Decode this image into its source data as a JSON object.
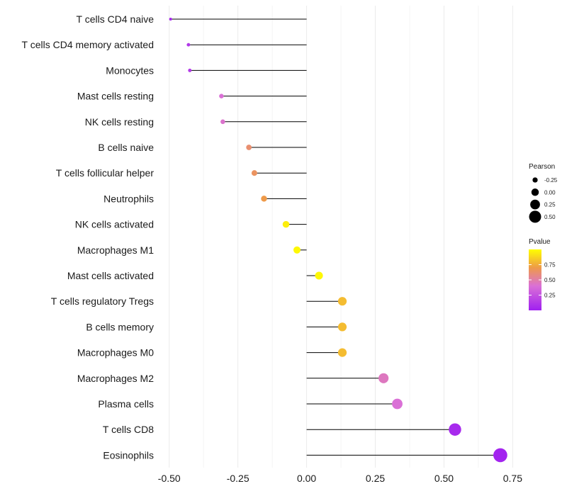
{
  "chart_data": {
    "type": "lollipop",
    "title": "",
    "xlabel": "",
    "ylabel": "",
    "xlim": [
      -0.52,
      0.78
    ],
    "xticks": [
      -0.5,
      -0.25,
      0.0,
      0.25,
      0.5,
      0.75
    ],
    "xtick_labels": [
      "-0.50",
      "-0.25",
      "0.00",
      "0.25",
      "0.50",
      "0.75"
    ],
    "categories": [
      "T cells CD4 naive",
      "T cells CD4 memory activated",
      "Monocytes",
      "Mast cells resting",
      "NK cells resting",
      "B cells naive",
      "T cells follicular helper",
      "Neutrophils",
      "NK cells activated",
      "Macrophages M1",
      "Mast cells activated",
      "T cells regulatory  Tregs ",
      "B cells memory",
      "Macrophages M0",
      "Macrophages M2",
      "Plasma cells",
      "T cells CD8",
      "Eosinophils"
    ],
    "pearson": [
      -0.495,
      -0.43,
      -0.425,
      -0.31,
      -0.305,
      -0.21,
      -0.19,
      -0.155,
      -0.075,
      -0.035,
      0.045,
      0.13,
      0.13,
      0.13,
      0.28,
      0.33,
      0.54,
      0.705
    ],
    "pvalue": [
      0.05,
      0.12,
      0.13,
      0.4,
      0.42,
      0.62,
      0.65,
      0.7,
      0.95,
      0.98,
      0.98,
      0.8,
      0.8,
      0.8,
      0.45,
      0.4,
      0.05,
      0.02
    ],
    "legend_pearson": {
      "title": "Pearson",
      "values": [
        -0.25,
        0.0,
        0.25,
        0.5
      ],
      "labels": [
        "-0.25",
        "0.00",
        "0.25",
        "0.50"
      ]
    },
    "legend_pvalue": {
      "title": "Pvalue",
      "values": [
        0.75,
        0.5,
        0.25
      ],
      "labels": [
        "0.75",
        "0.50",
        "0.25"
      ],
      "range": [
        0.0,
        1.0
      ]
    },
    "colors": {
      "low": "#a020f0",
      "mid": "#da70d6",
      "mid_high": "#ee9a49",
      "high": "#ffff00",
      "segment": "#000000",
      "grid": "#ebebeb"
    }
  }
}
